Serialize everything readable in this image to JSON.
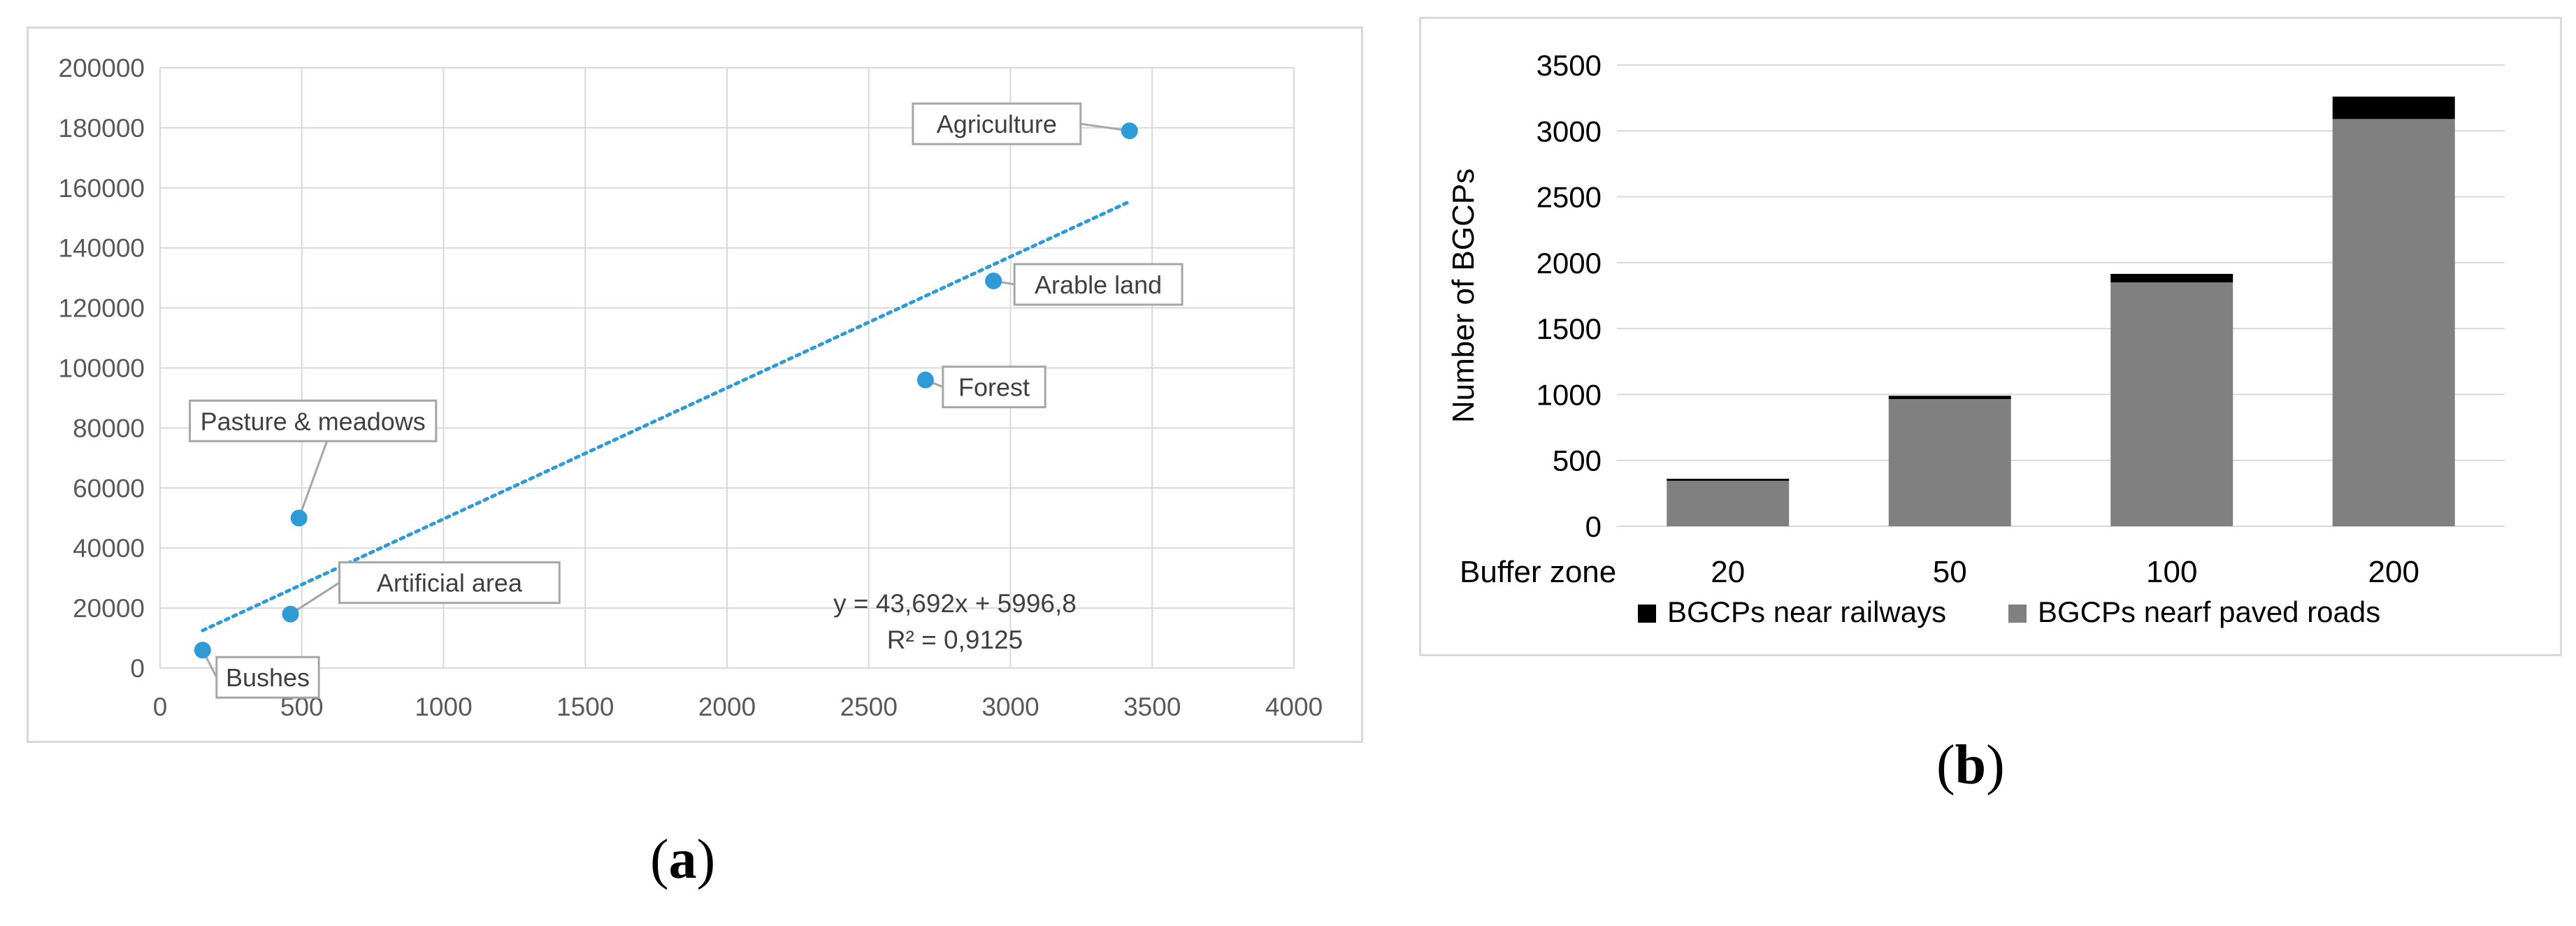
{
  "chart_data": [
    {
      "panel": "(a)",
      "type": "scatter",
      "xlim": [
        0,
        4000
      ],
      "ylim": [
        0,
        200000
      ],
      "x_ticks": [
        "0",
        "500",
        "1000",
        "1500",
        "2000",
        "2500",
        "3000",
        "3500",
        "4000"
      ],
      "y_ticks": [
        "0",
        "20000",
        "40000",
        "60000",
        "80000",
        "100000",
        "120000",
        "140000",
        "160000",
        "180000",
        "200000"
      ],
      "grid": true,
      "points": [
        {
          "label": "Bushes",
          "x": 150,
          "y": 6000
        },
        {
          "label": "Artificial area",
          "x": 460,
          "y": 18000
        },
        {
          "label": "Pasture & meadows",
          "x": 490,
          "y": 50000
        },
        {
          "label": "Forest",
          "x": 2700,
          "y": 96000
        },
        {
          "label": "Arable land",
          "x": 2940,
          "y": 129000
        },
        {
          "label": "Agriculture",
          "x": 3420,
          "y": 179000
        }
      ],
      "trendline": {
        "slope": 43.692,
        "intercept": 5996.8,
        "x_from": 150,
        "x_to": 3420
      },
      "equation": "y = 43,692x + 5996,8",
      "r_squared": "R² = 0,9125",
      "colors": {
        "points": "#2e9ad6",
        "trend": "#2e9ad6",
        "grid": "#d9d9d9"
      }
    },
    {
      "panel": "(b)",
      "type": "bar",
      "stacked": true,
      "categories": [
        "20",
        "50",
        "100",
        "200"
      ],
      "x_axis_title": "Buffer zone",
      "ylabel": "Number of BGCPs",
      "ylim": [
        0,
        3500
      ],
      "y_ticks": [
        "0",
        "500",
        "1000",
        "1500",
        "2000",
        "2500",
        "3000",
        "3500"
      ],
      "grid": true,
      "series": [
        {
          "name": "BGCPs nearf paved roads",
          "values": [
            345,
            965,
            1850,
            3090
          ],
          "color": "#808080"
        },
        {
          "name": "BGCPs near railways",
          "values": [
            15,
            25,
            65,
            170
          ],
          "color": "#000000"
        }
      ],
      "legend_position": "bottom"
    }
  ],
  "labels": {
    "a": "(a)",
    "b": "(b)"
  }
}
